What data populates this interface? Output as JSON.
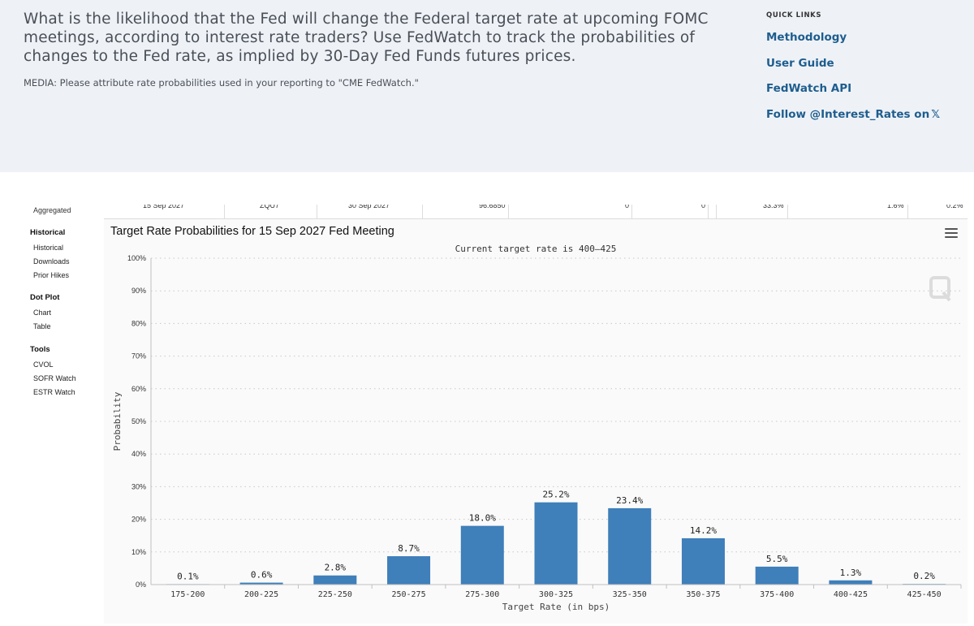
{
  "intro": {
    "text": "What is the likelihood that the Fed will change the Federal target rate at upcoming FOMC meetings, according to interest rate traders? Use FedWatch to track the probabilities of changes to the Fed rate, as implied by 30-Day Fed Funds futures prices.",
    "media_note": "MEDIA: Please attribute rate probabilities used in your reporting to \"CME FedWatch.\""
  },
  "quick_links": {
    "title": "QUICK LINKS",
    "items": [
      "Methodology",
      "User Guide",
      "FedWatch API",
      "Follow @Interest_Rates on"
    ],
    "x_logo": "𝕏"
  },
  "cut_row": {
    "left_label": "Aggregated",
    "cells": [
      "15 Sep 2027",
      "ZQU7",
      "30 Sep 2027",
      "96.6850",
      "0",
      "0",
      "33.3%",
      "1.6%",
      "0.2%"
    ]
  },
  "side_nav": [
    {
      "heading": "Historical",
      "items": [
        "Historical",
        "Downloads",
        "Prior Hikes"
      ]
    },
    {
      "heading": "Dot Plot",
      "items": [
        "Chart",
        "Table"
      ]
    },
    {
      "heading": "Tools",
      "items": [
        "CVOL",
        "SOFR Watch",
        "ESTR Watch"
      ]
    }
  ],
  "colors": {
    "bar": "#3f7fba",
    "grid": "#c8c8c8",
    "link": "#1e5d8e"
  },
  "chart_data": {
    "type": "bar",
    "title": "Target Rate Probabilities for 15 Sep 2027 Fed Meeting",
    "subtitle": "Current target rate is 400–425",
    "xlabel": "Target Rate (in bps)",
    "ylabel": "Probability",
    "ylim": [
      0,
      100
    ],
    "yticks": [
      0,
      10,
      20,
      30,
      40,
      50,
      60,
      70,
      80,
      90,
      100
    ],
    "ytick_labels": [
      "0%",
      "10%",
      "20%",
      "30%",
      "40%",
      "50%",
      "60%",
      "70%",
      "80%",
      "90%",
      "100%"
    ],
    "grid": true,
    "categories": [
      "175-200",
      "200-225",
      "225-250",
      "250-275",
      "275-300",
      "300-325",
      "325-350",
      "350-375",
      "375-400",
      "400-425",
      "425-450"
    ],
    "values": [
      0.1,
      0.6,
      2.8,
      8.7,
      18.0,
      25.2,
      23.4,
      14.2,
      5.5,
      1.3,
      0.2
    ],
    "data_labels": [
      "0.1%",
      "0.6%",
      "2.8%",
      "8.7%",
      "18.0%",
      "25.2%",
      "23.4%",
      "14.2%",
      "5.5%",
      "1.3%",
      "0.2%"
    ]
  }
}
